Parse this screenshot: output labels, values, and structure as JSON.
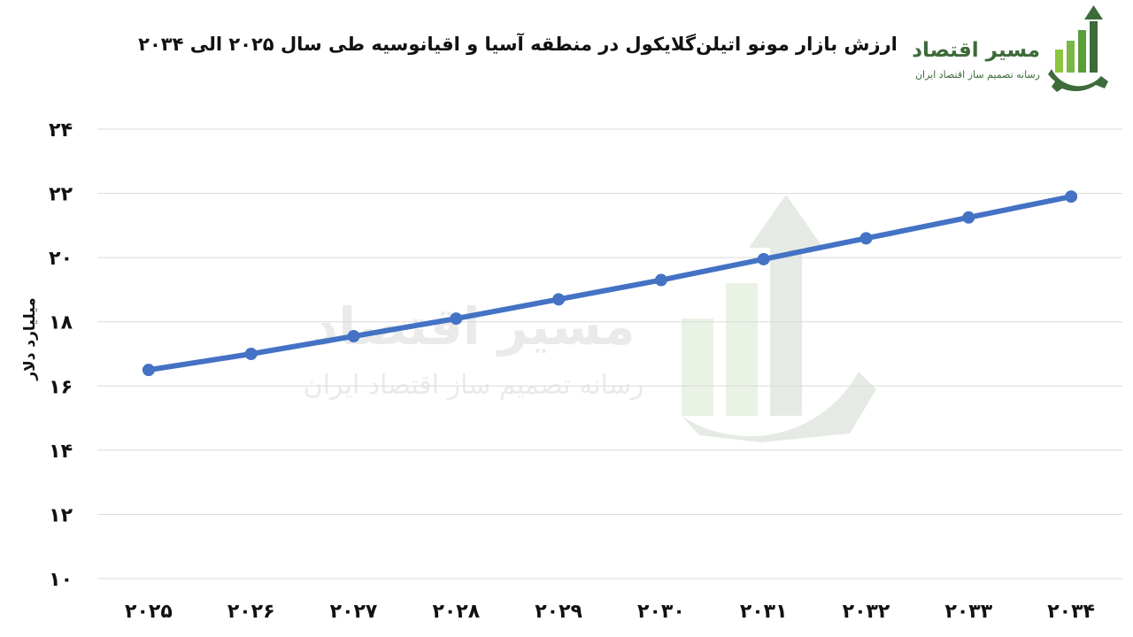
{
  "logo": {
    "name": "مسیر اقتصاد",
    "tagline": "رسانه تصمیم ساز اقتصاد ایران"
  },
  "chart_data": {
    "type": "line",
    "title": "ارزش بازار مونو اتیلن‌گلایکول در منطقه آسیا و اقیانوسیه طی سال ۲۰۲۵ الی ۲۰۳۴",
    "xlabel": "",
    "ylabel": "میلیارد دلار",
    "categories": [
      "۲۰۲۵",
      "۲۰۲۶",
      "۲۰۲۷",
      "۲۰۲۸",
      "۲۰۲۹",
      "۲۰۳۰",
      "۲۰۳۱",
      "۲۰۳۲",
      "۲۰۳۳",
      "۲۰۳۴"
    ],
    "series": [
      {
        "values": [
          16.5,
          17.0,
          17.55,
          18.1,
          18.7,
          19.3,
          19.95,
          20.6,
          21.25,
          21.9
        ]
      }
    ],
    "ylim": [
      10,
      24
    ],
    "yticks": [
      10,
      12,
      14,
      16,
      18,
      20,
      22,
      24
    ],
    "ytick_labels": [
      "۱۰",
      "۱۲",
      "۱۴",
      "۱۶",
      "۱۸",
      "۲۰",
      "۲۲",
      "۲۴"
    ],
    "grid": true,
    "legend": "none",
    "line_color": "#4472c4"
  }
}
